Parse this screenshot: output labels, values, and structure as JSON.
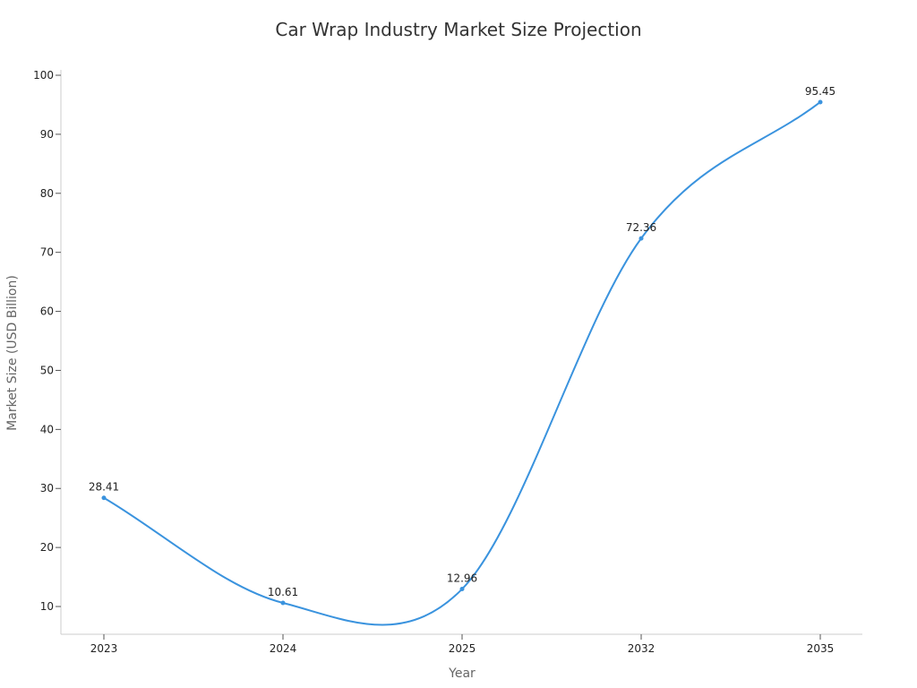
{
  "chart_data": {
    "type": "line",
    "title": "Car Wrap Industry Market Size Projection",
    "xlabel": "Year",
    "ylabel": "Market Size (USD Billion)",
    "categories": [
      "2023",
      "2024",
      "2025",
      "2032",
      "2035"
    ],
    "series": [
      {
        "values": [
          28.41,
          10.61,
          12.96,
          72.36,
          95.45
        ],
        "data_labels": [
          "28.41",
          "10.61",
          "12.96",
          "72.36",
          "95.45"
        ]
      }
    ],
    "yticks": [
      "10",
      "20",
      "30",
      "40",
      "50",
      "60",
      "70",
      "80",
      "90",
      "100"
    ],
    "ylim": [
      5.3,
      100
    ],
    "grid": false,
    "legend": "none",
    "line_color": "#3a93de",
    "axis_color": "#cccccc"
  }
}
